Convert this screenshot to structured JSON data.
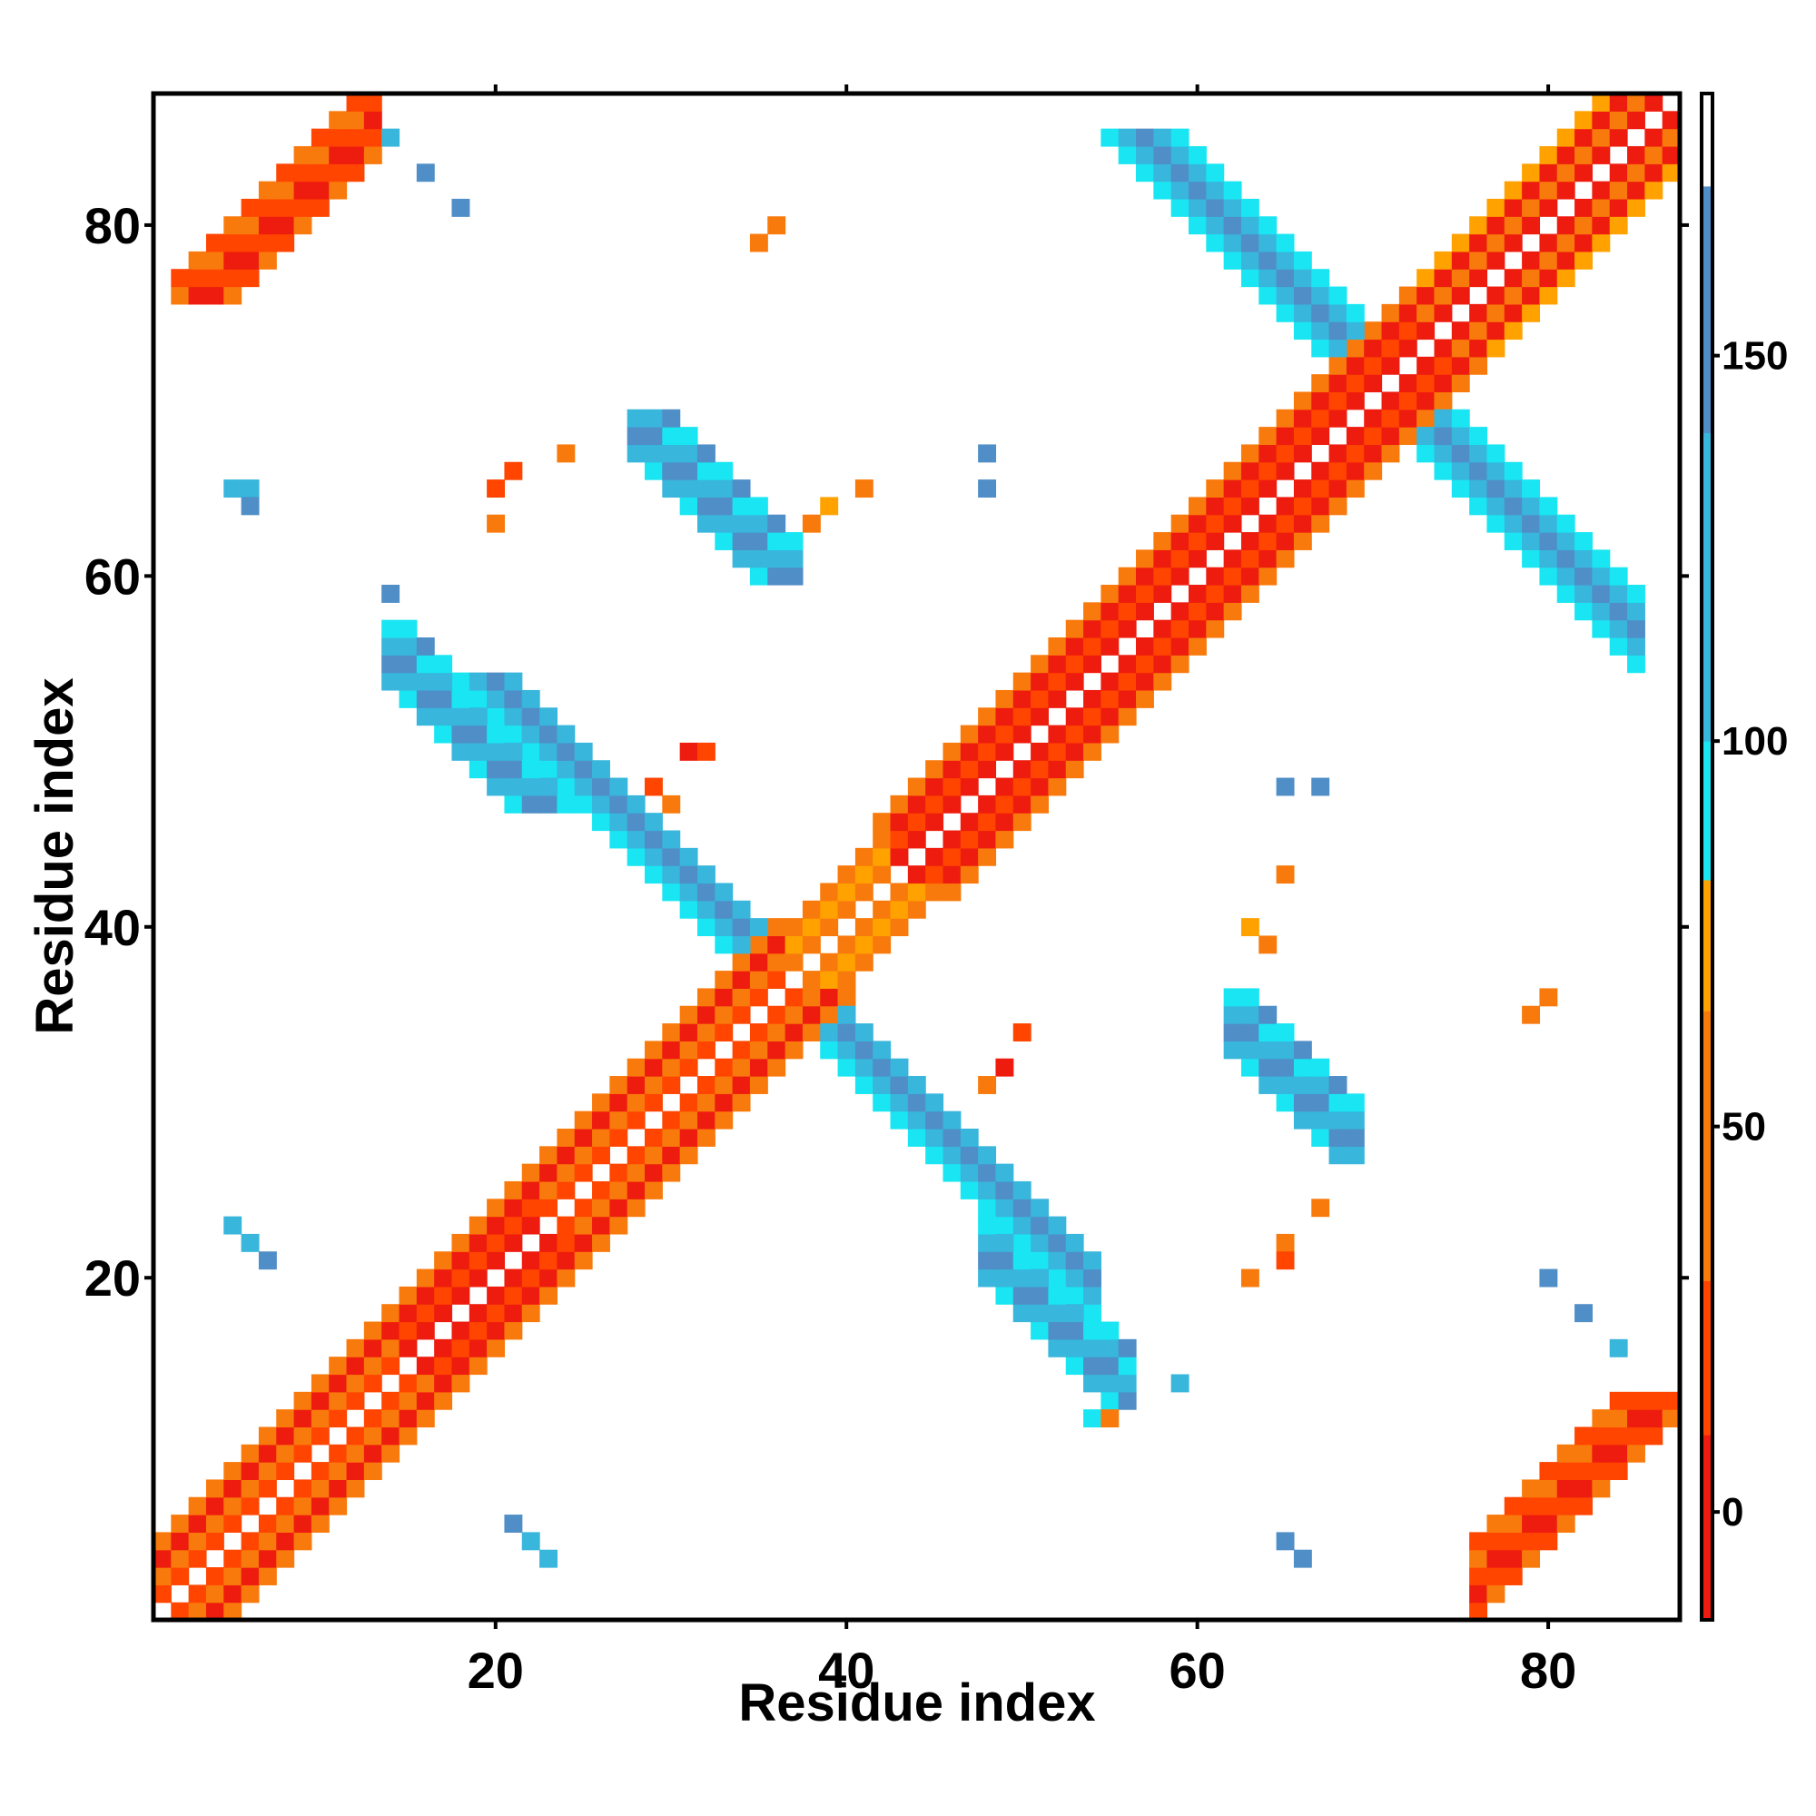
{
  "chart_data": {
    "type": "heatmap",
    "title": "",
    "xlabel": "Residue index",
    "ylabel": "Residue index",
    "xlim": [
      0.5,
      87.5
    ],
    "ylim": [
      0.5,
      87.5
    ],
    "x_ticks": [
      20,
      40,
      60,
      80
    ],
    "y_ticks": [
      20,
      40,
      60,
      80
    ],
    "x_tick_labels": [
      "20",
      "40",
      "60",
      "80"
    ],
    "y_tick_labels": [
      "20",
      "40",
      "60",
      "80"
    ],
    "grid": false,
    "colorbar": {
      "position": "right",
      "range": [
        -14,
        184
      ],
      "ticks": [
        0,
        50,
        100,
        150
      ],
      "tick_labels": [
        "0",
        "50",
        "100",
        "150"
      ],
      "bands": [
        {
          "from": -14,
          "to": 10,
          "color": "#ee1c0e"
        },
        {
          "from": 10,
          "to": 30,
          "color": "#ff4500"
        },
        {
          "from": 30,
          "to": 65,
          "color": "#f97a0c"
        },
        {
          "from": 65,
          "to": 82,
          "color": "#ffa200"
        },
        {
          "from": 82,
          "to": 100,
          "color": "#19e6f2"
        },
        {
          "from": 100,
          "to": 140,
          "color": "#38b6dc"
        },
        {
          "from": 140,
          "to": 172,
          "color": "#4f8ec6"
        },
        {
          "from": 172,
          "to": 184,
          "color": "#ffffff"
        }
      ]
    },
    "colors": {
      "A": "#ee1c0e",
      "B": "#ff4500",
      "C": "#f97a0c",
      "D": "#ffa200",
      "E": "#19e6f2",
      "F": "#38b6dc",
      "G": "#4f8ec6"
    },
    "color_values": {
      "A": 0,
      "B": 20,
      "C": 45,
      "D": 75,
      "E": 90,
      "F": 120,
      "G": 155
    },
    "diagonal_bands": [
      {
        "from": 1,
        "to": 14,
        "offsets": [
          [
            1,
            "B"
          ],
          [
            2,
            "C"
          ],
          [
            3,
            "A"
          ],
          [
            4,
            "C"
          ]
        ]
      },
      {
        "from": 14,
        "to": 22,
        "offsets": [
          [
            1,
            "A"
          ],
          [
            2,
            "B"
          ],
          [
            3,
            "A"
          ],
          [
            4,
            "C"
          ]
        ]
      },
      {
        "from": 22,
        "to": 36,
        "offsets": [
          [
            1,
            "B"
          ],
          [
            2,
            "C"
          ],
          [
            3,
            "A"
          ],
          [
            4,
            "C"
          ]
        ]
      },
      {
        "from": 36,
        "to": 42,
        "offsets": [
          [
            1,
            "C"
          ],
          [
            2,
            "D"
          ],
          [
            3,
            "C"
          ]
        ]
      },
      {
        "from": 42,
        "to": 72,
        "offsets": [
          [
            1,
            "A"
          ],
          [
            2,
            "B"
          ],
          [
            3,
            "A"
          ],
          [
            4,
            "C"
          ]
        ]
      },
      {
        "from": 72,
        "to": 87,
        "offsets": [
          [
            1,
            "A"
          ],
          [
            2,
            "C"
          ],
          [
            3,
            "A"
          ],
          [
            4,
            "D"
          ]
        ]
      }
    ],
    "antiparallel_bands": [
      {
        "sum": 74,
        "from": 36,
        "to": 54,
        "colors": [
          "E",
          "F",
          "G",
          "F"
        ]
      },
      {
        "sum": 142,
        "from": 70,
        "to": 85,
        "colors": [
          "E",
          "F",
          "G",
          "F",
          "E"
        ]
      }
    ],
    "region_blocks": [
      {
        "i_from": 2,
        "i_to": 13,
        "j_from": 76,
        "j_to": 87,
        "slope": 1,
        "intercept": 73,
        "width": 2,
        "colors": [
          "A",
          "B",
          "C",
          "B"
        ]
      },
      {
        "i_from": 14,
        "i_to": 24,
        "j_from": 47,
        "j_to": 57,
        "slope": -1,
        "intercept": 70,
        "width": 2,
        "colors": [
          "G",
          "F",
          "E"
        ]
      },
      {
        "i_from": 48,
        "i_to": 56,
        "j_from": 13,
        "j_to": 23,
        "slope": -1,
        "intercept": 70,
        "width": 2,
        "colors": [
          "G",
          "F",
          "E"
        ]
      },
      {
        "i_from": 28,
        "i_to": 37,
        "j_from": 60,
        "j_to": 69,
        "slope": -1,
        "intercept": 97,
        "width": 2,
        "colors": [
          "G",
          "F",
          "E"
        ]
      },
      {
        "i_from": 62,
        "i_to": 69,
        "j_from": 27,
        "j_to": 36,
        "slope": -1,
        "intercept": 97,
        "width": 2,
        "colors": [
          "G",
          "F",
          "E"
        ]
      },
      {
        "i_from": 76,
        "i_to": 87,
        "j_from": 1,
        "j_to": 13,
        "slope": 1,
        "intercept": -73,
        "width": 2,
        "colors": [
          "A",
          "B",
          "C",
          "B"
        ]
      }
    ],
    "scatter_cells": [
      {
        "i": 14,
        "j": 85,
        "c": "F"
      },
      {
        "i": 16,
        "j": 83,
        "c": "G"
      },
      {
        "i": 18,
        "j": 81,
        "c": "G"
      },
      {
        "i": 36,
        "j": 80,
        "c": "C"
      },
      {
        "i": 35,
        "j": 79,
        "c": "C"
      },
      {
        "i": 5,
        "j": 65,
        "c": "F"
      },
      {
        "i": 6,
        "j": 65,
        "c": "F"
      },
      {
        "i": 6,
        "j": 64,
        "c": "G"
      },
      {
        "i": 20,
        "j": 65,
        "c": "B"
      },
      {
        "i": 21,
        "j": 66,
        "c": "B"
      },
      {
        "i": 20,
        "j": 63,
        "c": "C"
      },
      {
        "i": 24,
        "j": 67,
        "c": "C"
      },
      {
        "i": 38,
        "j": 63,
        "c": "C"
      },
      {
        "i": 39,
        "j": 64,
        "c": "D"
      },
      {
        "i": 41,
        "j": 65,
        "c": "C"
      },
      {
        "i": 48,
        "j": 67,
        "c": "G"
      },
      {
        "i": 48,
        "j": 65,
        "c": "G"
      },
      {
        "i": 14,
        "j": 59,
        "c": "G"
      },
      {
        "i": 29,
        "j": 48,
        "c": "B"
      },
      {
        "i": 31,
        "j": 50,
        "c": "A"
      },
      {
        "i": 32,
        "j": 50,
        "c": "B"
      },
      {
        "i": 30,
        "j": 47,
        "c": "C"
      },
      {
        "i": 65,
        "j": 48,
        "c": "G"
      },
      {
        "i": 67,
        "j": 48,
        "c": "G"
      },
      {
        "i": 65,
        "j": 43,
        "c": "C"
      },
      {
        "i": 63,
        "j": 40,
        "c": "D"
      },
      {
        "i": 64,
        "j": 39,
        "c": "C"
      },
      {
        "i": 80,
        "j": 36,
        "c": "C"
      },
      {
        "i": 79,
        "j": 35,
        "c": "C"
      },
      {
        "i": 49,
        "j": 32,
        "c": "A"
      },
      {
        "i": 50,
        "j": 34,
        "c": "B"
      },
      {
        "i": 48,
        "j": 31,
        "c": "C"
      },
      {
        "i": 5,
        "j": 23,
        "c": "F"
      },
      {
        "i": 6,
        "j": 22,
        "c": "F"
      },
      {
        "i": 7,
        "j": 21,
        "c": "G"
      },
      {
        "i": 67,
        "j": 24,
        "c": "C"
      },
      {
        "i": 65,
        "j": 22,
        "c": "C"
      },
      {
        "i": 65,
        "j": 21,
        "c": "B"
      },
      {
        "i": 63,
        "j": 20,
        "c": "C"
      },
      {
        "i": 80,
        "j": 20,
        "c": "G"
      },
      {
        "i": 82,
        "j": 18,
        "c": "G"
      },
      {
        "i": 84,
        "j": 16,
        "c": "F"
      },
      {
        "i": 59,
        "j": 14,
        "c": "F"
      },
      {
        "i": 21,
        "j": 6,
        "c": "G"
      },
      {
        "i": 22,
        "j": 5,
        "c": "F"
      },
      {
        "i": 23,
        "j": 4,
        "c": "F"
      },
      {
        "i": 65,
        "j": 5,
        "c": "G"
      },
      {
        "i": 66,
        "j": 4,
        "c": "G"
      },
      {
        "i": 54,
        "j": 12,
        "c": "E"
      },
      {
        "i": 55,
        "j": 12,
        "c": "C"
      }
    ]
  }
}
